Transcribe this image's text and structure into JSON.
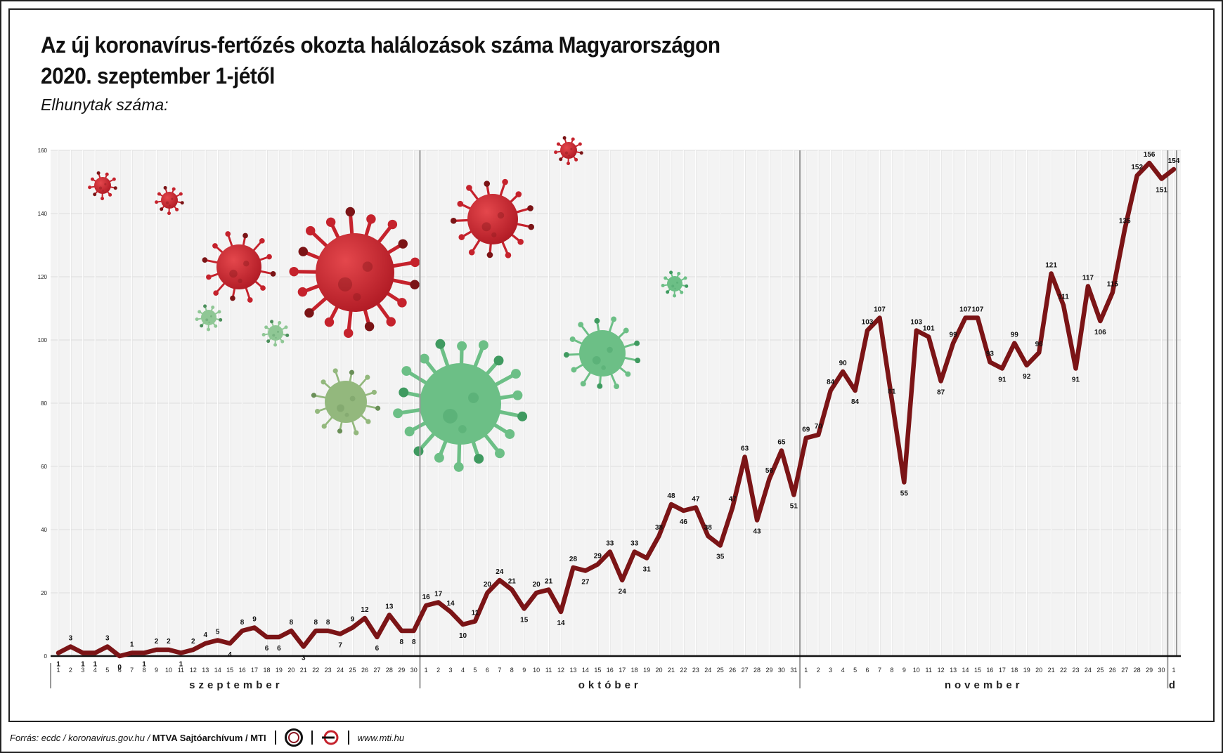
{
  "header": {
    "title_line1": "Az új koronavírus-fertőzés okozta halálozások száma Magyarországon",
    "title_line2": "2020. szeptember 1-jétől",
    "subtitle": "Elhunytak száma:"
  },
  "footer": {
    "source_prefix": "Forrás: ecdc / koronavirus.gov.hu / ",
    "source_bold": "MTVA Sajtóarchívum / MTI",
    "mtva_logo_text": "MTVA",
    "website": "www.mti.hu"
  },
  "colors": {
    "line": "#7b1416",
    "grid": "#dedede",
    "plot_bg": "#f3f3f3",
    "virus_red": "#c5222c",
    "virus_green": "#6cbf86"
  },
  "chart_data": {
    "type": "line",
    "title": "Az új koronavírus-fertőzés okozta halálozások száma Magyarországon 2020. szeptember 1-jétől",
    "ylabel": "Elhunytak száma:",
    "ylim": [
      0,
      160
    ],
    "yticks": [
      0,
      20,
      40,
      60,
      80,
      100,
      120,
      140,
      160
    ],
    "grid": true,
    "months": [
      {
        "label": "szeptember",
        "days": 30
      },
      {
        "label": "október",
        "days": 31
      },
      {
        "label": "november",
        "days": 30
      },
      {
        "label": "d",
        "days": 1
      }
    ],
    "x": [
      "1",
      "2",
      "3",
      "4",
      "5",
      "6",
      "7",
      "8",
      "9",
      "10",
      "11",
      "12",
      "13",
      "14",
      "15",
      "16",
      "17",
      "18",
      "19",
      "20",
      "21",
      "22",
      "23",
      "24",
      "25",
      "26",
      "27",
      "28",
      "29",
      "30",
      "1",
      "2",
      "3",
      "4",
      "5",
      "6",
      "7",
      "8",
      "9",
      "10",
      "11",
      "12",
      "13",
      "14",
      "15",
      "16",
      "17",
      "18",
      "19",
      "20",
      "21",
      "22",
      "23",
      "24",
      "25",
      "26",
      "27",
      "28",
      "29",
      "30",
      "31",
      "1",
      "2",
      "3",
      "4",
      "5",
      "6",
      "7",
      "8",
      "9",
      "10",
      "11",
      "12",
      "13",
      "14",
      "15",
      "16",
      "17",
      "18",
      "19",
      "20",
      "21",
      "22",
      "23",
      "24",
      "25",
      "26",
      "27",
      "28",
      "29",
      "30",
      "1"
    ],
    "series": [
      {
        "values": [
          1,
          3,
          1,
          1,
          3,
          0,
          1,
          1,
          2,
          2,
          1,
          2,
          4,
          5,
          4,
          8,
          9,
          6,
          6,
          8,
          3,
          8,
          8,
          7,
          9,
          12,
          6,
          13,
          8,
          8,
          16,
          17,
          14,
          10,
          11,
          20,
          24,
          21,
          15,
          20,
          21,
          14,
          28,
          27,
          29,
          33,
          24,
          33,
          31,
          38,
          48,
          46,
          47,
          38,
          35,
          47,
          63,
          43,
          56,
          65,
          51,
          69,
          70,
          84,
          90,
          84,
          103,
          107,
          81,
          55,
          103,
          101,
          87,
          99,
          107,
          107,
          93,
          91,
          99,
          92,
          96,
          121,
          111,
          91,
          117,
          106,
          115,
          135,
          152,
          156,
          151,
          154
        ]
      }
    ]
  }
}
